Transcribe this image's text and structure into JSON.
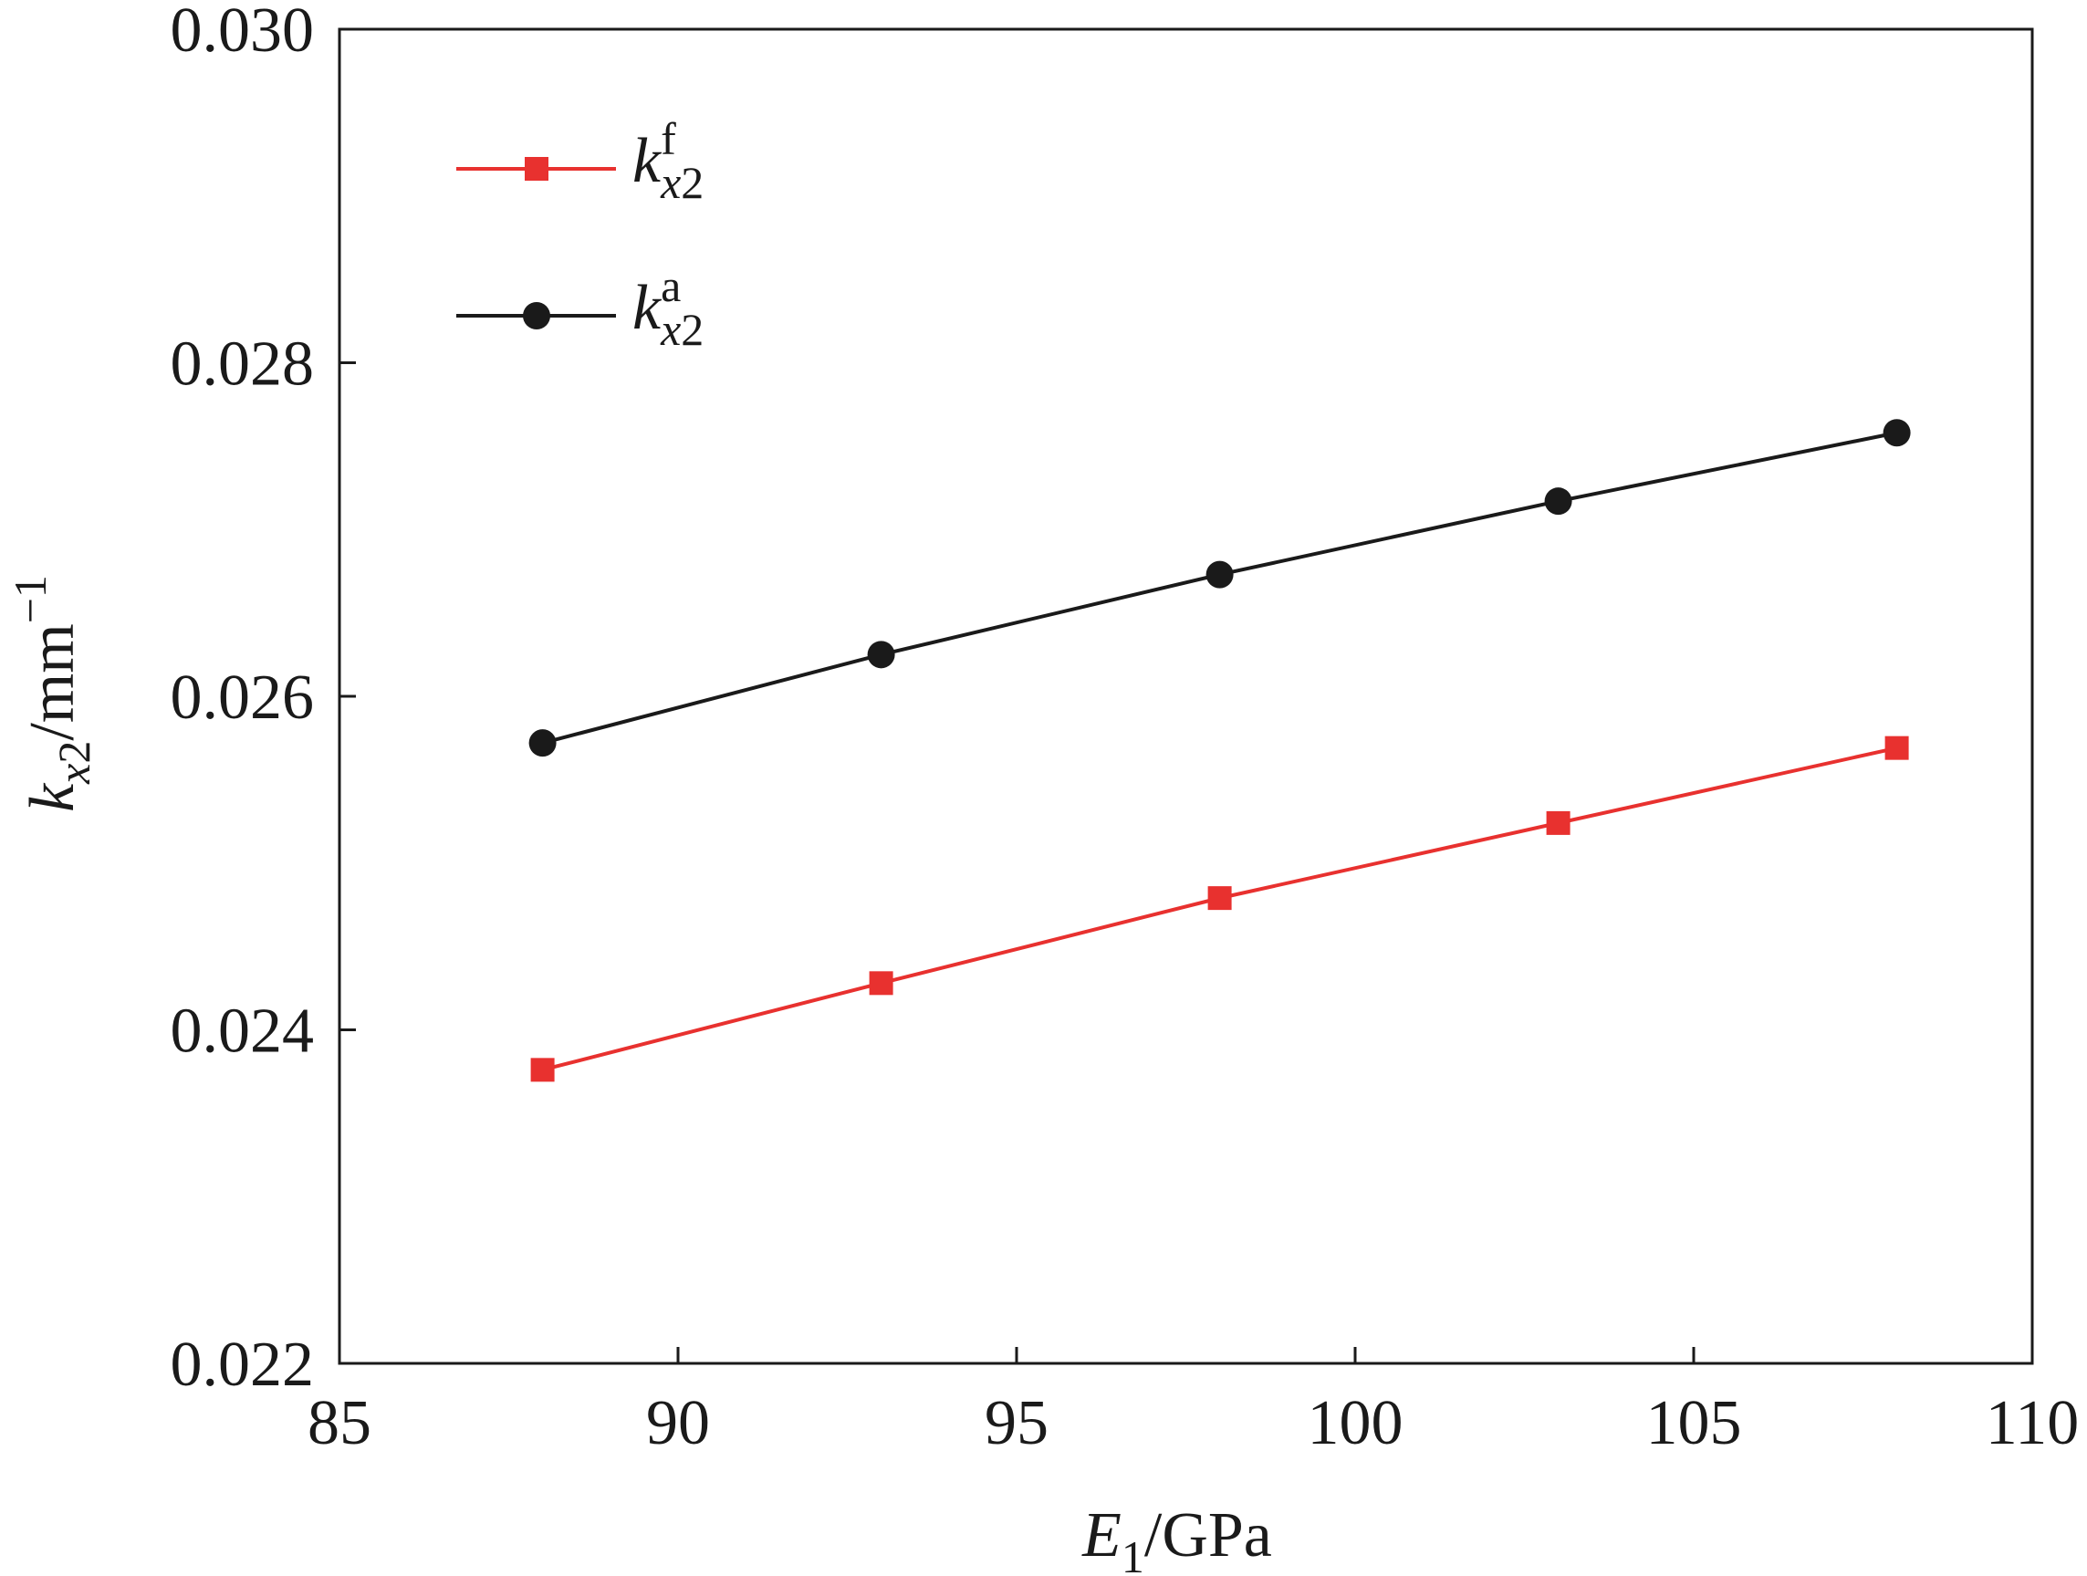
{
  "chart_data": {
    "type": "line",
    "x_label": {
      "base": "E",
      "sub": "1",
      "rest": "/GPa"
    },
    "y_label": {
      "base": "k",
      "sub": "x2",
      "rest": "/mm",
      "sup": "−1"
    },
    "xlim": [
      85,
      110
    ],
    "xticks": [
      85,
      90,
      95,
      100,
      105,
      110
    ],
    "ylim": [
      0.022,
      0.03
    ],
    "yticks": [
      {
        "value": 0.022,
        "label": "0.022"
      },
      {
        "value": 0.024,
        "label": "0.024"
      },
      {
        "value": 0.026,
        "label": "0.026"
      },
      {
        "value": 0.028,
        "label": "0.028"
      },
      {
        "value": 0.03,
        "label": "0.030"
      }
    ],
    "legend": "upper left",
    "series": [
      {
        "name": {
          "base": "k",
          "sup": "f",
          "sub": "x2"
        },
        "color": "#e8312f",
        "marker": "square",
        "x": [
          88,
          93,
          98,
          103,
          108
        ],
        "values": [
          0.02376,
          0.02428,
          0.02479,
          0.02524,
          0.02569
        ]
      },
      {
        "name": {
          "base": "k",
          "sup": "a",
          "sub": "x2"
        },
        "color": "#1a1a1a",
        "marker": "circle",
        "x": [
          88,
          93,
          98,
          103,
          108
        ],
        "values": [
          0.02572,
          0.02625,
          0.02673,
          0.02717,
          0.02758
        ]
      }
    ]
  }
}
